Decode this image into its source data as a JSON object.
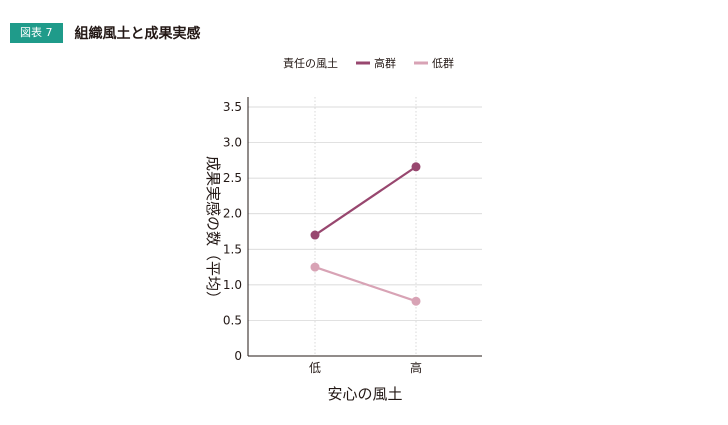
{
  "figure": {
    "badge": "図表 7",
    "title": "組織風土と成果実感"
  },
  "colors": {
    "badge": "#1f9b8a",
    "high": "#98476f",
    "low": "#d8a3b5",
    "grid": "#cfcfcf",
    "axis": "#231815"
  },
  "chart_data": {
    "type": "line",
    "legend_title": "責任の風土",
    "legend_position": "top",
    "categories": [
      "低",
      "高"
    ],
    "xlabel": "安心の風土",
    "ylabel": "成果実感の数（平均）",
    "ylim": [
      0,
      3.5
    ],
    "yticks": [
      0,
      0.5,
      1.0,
      1.5,
      2.0,
      2.5,
      3.0,
      3.5
    ],
    "ytick_labels": [
      "0",
      "0.5",
      "1.0",
      "1.5",
      "2.0",
      "2.5",
      "3.0",
      "3.5"
    ],
    "grid": true,
    "series": [
      {
        "name": "高群",
        "values": [
          1.7,
          2.66
        ],
        "color": "#98476f"
      },
      {
        "name": "低群",
        "values": [
          1.25,
          0.77
        ],
        "color": "#d8a3b5"
      }
    ]
  }
}
